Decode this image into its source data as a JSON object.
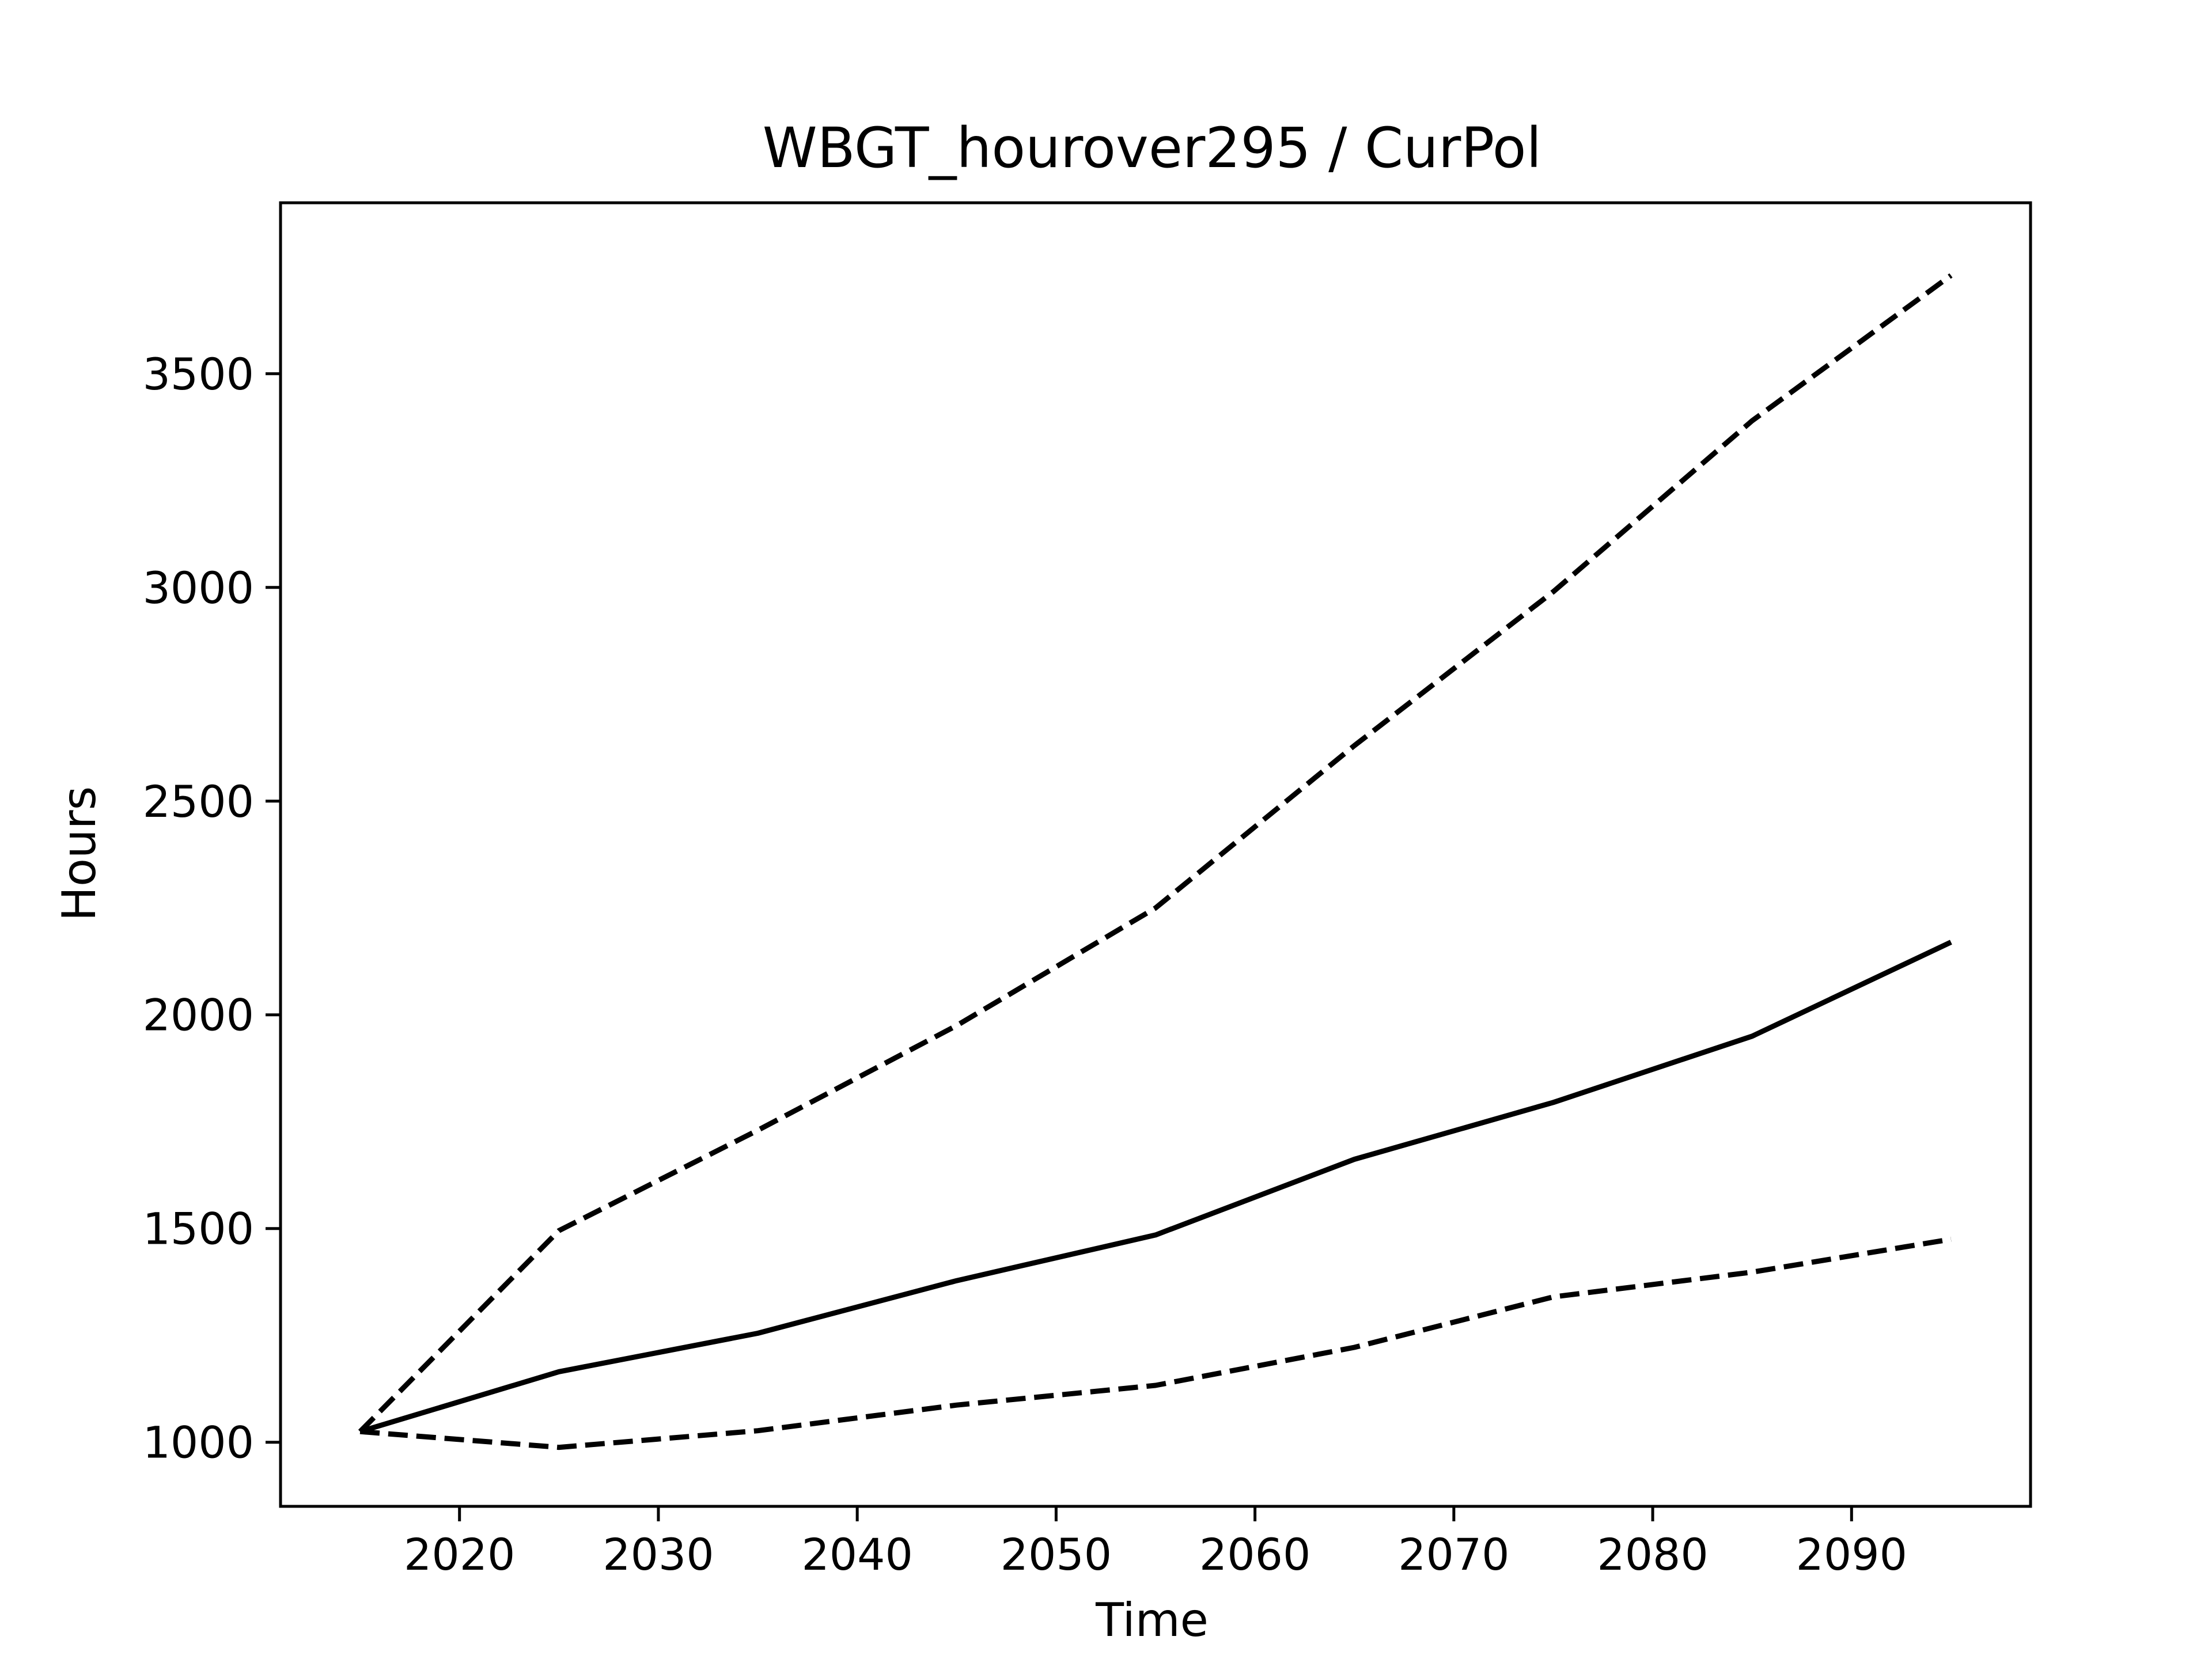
{
  "chart_data": {
    "type": "line",
    "title": "WBGT_hourover295 / CurPol",
    "xlabel": "Time",
    "ylabel": "Hours",
    "xlim": [
      2011,
      2099
    ],
    "ylim": [
      850,
      3900
    ],
    "x_ticks": [
      2020,
      2030,
      2040,
      2050,
      2060,
      2070,
      2080,
      2090
    ],
    "y_ticks": [
      1000,
      1500,
      2000,
      2500,
      3000,
      3500
    ],
    "x_tick_labels": [
      "2020",
      "2030",
      "2040",
      "2050",
      "2060",
      "2070",
      "2080",
      "2090"
    ],
    "y_tick_labels": [
      "1000",
      "1500",
      "2000",
      "2500",
      "3000",
      "3500"
    ],
    "grid": false,
    "legend": null,
    "x": [
      2015,
      2025,
      2035,
      2045,
      2055,
      2065,
      2075,
      2085,
      2095
    ],
    "series": [
      {
        "style": "dashed",
        "color": "#000000",
        "values": [
          1025,
          1495,
          1730,
          1975,
          2250,
          2630,
          2990,
          3390,
          3730
        ]
      },
      {
        "style": "solid",
        "color": "#000000",
        "values": [
          1025,
          1165,
          1255,
          1378,
          1485,
          1662,
          1795,
          1950,
          2170
        ]
      },
      {
        "style": "dashed",
        "color": "#000000",
        "values": [
          1025,
          988,
          1027,
          1087,
          1133,
          1222,
          1340,
          1398,
          1475
        ]
      }
    ]
  }
}
